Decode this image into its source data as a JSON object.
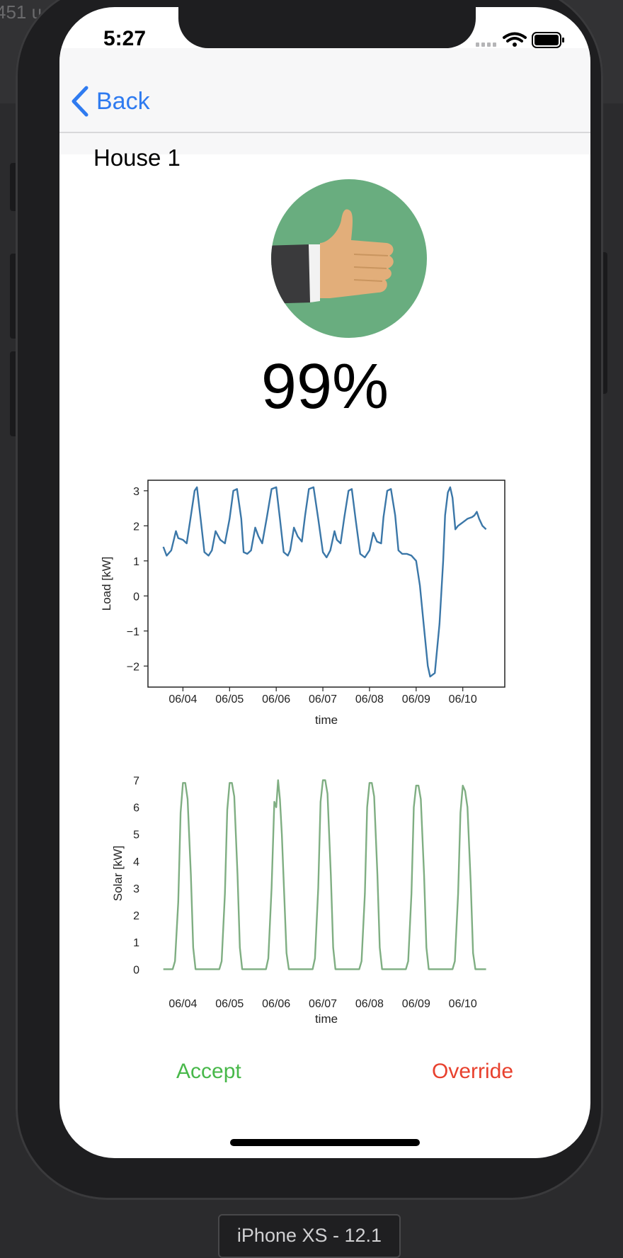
{
  "simulator": {
    "bg_text": "451 u",
    "device_label": "iPhone XS - 12.1"
  },
  "status_bar": {
    "time": "5:27"
  },
  "nav": {
    "back_label": "Back",
    "back_icon": "chevron-left-icon"
  },
  "page": {
    "title": "House 1",
    "score": "99%",
    "score_icon": "thumbs-up-icon",
    "score_icon_bg": "#69ad7f"
  },
  "actions": {
    "accept_label": "Accept",
    "override_label": "Override"
  },
  "chart_data": [
    {
      "type": "line",
      "xlabel": "time",
      "ylabel": "Load [kW]",
      "ylim": [
        -2.6,
        3.3
      ],
      "yticks": [
        "3",
        "2",
        "1",
        "0",
        "−1",
        "−2"
      ],
      "x_tick_labels": [
        "06/04",
        "06/05",
        "06/06",
        "06/07",
        "06/08",
        "06/09",
        "06/10"
      ],
      "color": "#3b77a8",
      "series": [
        {
          "x": [
            -0.42,
            -0.35,
            -0.25,
            -0.15,
            -0.1,
            0,
            0.08,
            0.16,
            0.25,
            0.3,
            0.38,
            0.46,
            0.55,
            0.62,
            0.7,
            0.8,
            0.9,
            1.0,
            1.08,
            1.16,
            1.25,
            1.3,
            1.38,
            1.46,
            1.55,
            1.62,
            1.7,
            1.8,
            1.9,
            2.0,
            2.08,
            2.16,
            2.25,
            2.3,
            2.38,
            2.46,
            2.55,
            2.62,
            2.7,
            2.8,
            2.9,
            3.0,
            3.08,
            3.16,
            3.25,
            3.3,
            3.38,
            3.46,
            3.55,
            3.62,
            3.7,
            3.8,
            3.9,
            4.0,
            4.08,
            4.16,
            4.25,
            4.3,
            4.38,
            4.46,
            4.55,
            4.62,
            4.7,
            4.8,
            4.9,
            5.0,
            5.08,
            5.16,
            5.25,
            5.3,
            5.4,
            5.5,
            5.58,
            5.62,
            5.68,
            5.73,
            5.78,
            5.84,
            5.9,
            5.95,
            6.0,
            6.05,
            6.1,
            6.2,
            6.25,
            6.3,
            6.35,
            6.42,
            6.5
          ],
          "y": [
            1.4,
            1.15,
            1.3,
            1.85,
            1.65,
            1.6,
            1.5,
            2.2,
            3.0,
            3.1,
            2.2,
            1.25,
            1.15,
            1.3,
            1.85,
            1.6,
            1.5,
            2.2,
            3.0,
            3.05,
            2.2,
            1.25,
            1.2,
            1.3,
            1.95,
            1.7,
            1.5,
            2.25,
            3.05,
            3.1,
            2.2,
            1.25,
            1.15,
            1.3,
            1.95,
            1.7,
            1.55,
            2.3,
            3.05,
            3.1,
            2.2,
            1.25,
            1.1,
            1.3,
            1.85,
            1.6,
            1.5,
            2.25,
            3.0,
            3.05,
            2.2,
            1.2,
            1.1,
            1.3,
            1.8,
            1.55,
            1.5,
            2.25,
            3.0,
            3.05,
            2.3,
            1.3,
            1.2,
            1.2,
            1.15,
            1.0,
            0.3,
            -0.8,
            -2.0,
            -2.3,
            -2.2,
            -0.8,
            1.0,
            2.3,
            2.95,
            3.1,
            2.8,
            1.9,
            2.0,
            2.05,
            2.1,
            2.15,
            2.2,
            2.25,
            2.3,
            2.4,
            2.2,
            2.0,
            1.9
          ]
        }
      ]
    },
    {
      "type": "line",
      "xlabel": "time",
      "ylabel": "Solar [kW]",
      "ylim": [
        0,
        7
      ],
      "yticks": [
        "7",
        "6",
        "5",
        "4",
        "3",
        "2",
        "1",
        "0"
      ],
      "x_tick_labels": [
        "06/04",
        "06/05",
        "06/06",
        "06/07",
        "06/08",
        "06/09",
        "06/10"
      ],
      "color": "#7fae82",
      "series": [
        {
          "x": [
            -0.42,
            -0.22,
            -0.17,
            -0.1,
            -0.05,
            0,
            0.05,
            0.1,
            0.17,
            0.22,
            0.27,
            0.35,
            0.78,
            0.83,
            0.9,
            0.95,
            1.0,
            1.05,
            1.1,
            1.17,
            1.22,
            1.27,
            1.35,
            1.78,
            1.83,
            1.9,
            1.96,
            2.0,
            2.04,
            2.08,
            2.12,
            2.17,
            2.22,
            2.27,
            2.35,
            2.78,
            2.83,
            2.9,
            2.95,
            3.0,
            3.05,
            3.1,
            3.17,
            3.22,
            3.27,
            3.35,
            3.78,
            3.83,
            3.9,
            3.95,
            4.0,
            4.05,
            4.1,
            4.17,
            4.22,
            4.27,
            4.35,
            4.78,
            4.83,
            4.9,
            4.95,
            5.0,
            5.05,
            5.1,
            5.17,
            5.22,
            5.27,
            5.35,
            5.78,
            5.83,
            5.9,
            5.95,
            6.0,
            6.05,
            6.1,
            6.17,
            6.22,
            6.27,
            6.5
          ],
          "y": [
            0,
            0,
            0.3,
            2.5,
            5.8,
            6.9,
            6.9,
            6.3,
            3.5,
            0.8,
            0,
            0,
            0,
            0.3,
            2.8,
            5.9,
            6.9,
            6.9,
            6.4,
            3.5,
            0.8,
            0,
            0,
            0,
            0.4,
            3.0,
            6.2,
            6.0,
            7.0,
            6.3,
            5.0,
            2.8,
            0.6,
            0,
            0,
            0,
            0.4,
            3.0,
            6.2,
            7.0,
            7.0,
            6.5,
            3.5,
            0.8,
            0,
            0,
            0,
            0.3,
            2.8,
            6.0,
            6.9,
            6.9,
            6.4,
            3.5,
            0.8,
            0,
            0,
            0,
            0.3,
            2.8,
            6.0,
            6.8,
            6.8,
            6.3,
            3.5,
            0.8,
            0,
            0,
            0,
            0.3,
            2.8,
            5.8,
            6.8,
            6.6,
            6.0,
            3.2,
            0.6,
            0,
            0
          ]
        }
      ]
    }
  ]
}
